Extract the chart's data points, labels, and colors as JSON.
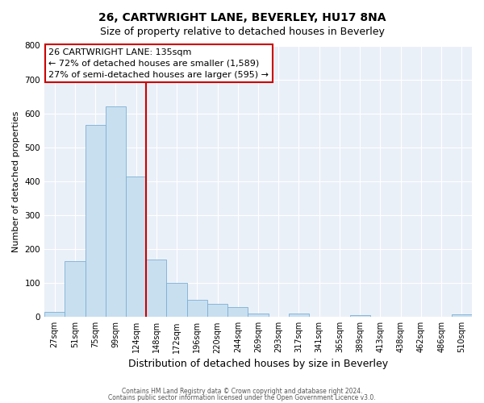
{
  "title": "26, CARTWRIGHT LANE, BEVERLEY, HU17 8NA",
  "subtitle": "Size of property relative to detached houses in Beverley",
  "xlabel": "Distribution of detached houses by size in Beverley",
  "ylabel": "Number of detached properties",
  "bin_labels": [
    "27sqm",
    "51sqm",
    "75sqm",
    "99sqm",
    "124sqm",
    "148sqm",
    "172sqm",
    "196sqm",
    "220sqm",
    "244sqm",
    "269sqm",
    "293sqm",
    "317sqm",
    "341sqm",
    "365sqm",
    "389sqm",
    "413sqm",
    "438sqm",
    "462sqm",
    "486sqm",
    "510sqm"
  ],
  "bar_heights": [
    15,
    165,
    565,
    620,
    415,
    170,
    100,
    50,
    38,
    30,
    10,
    0,
    10,
    0,
    0,
    5,
    0,
    0,
    0,
    0,
    8
  ],
  "bar_color": "#c8dff0",
  "bar_edge_color": "#7bafd4",
  "vline_x_index": 4.5,
  "vline_color": "#cc0000",
  "ylim": [
    0,
    800
  ],
  "yticks": [
    0,
    100,
    200,
    300,
    400,
    500,
    600,
    700,
    800
  ],
  "annotation_title": "26 CARTWRIGHT LANE: 135sqm",
  "annotation_line1": "← 72% of detached houses are smaller (1,589)",
  "annotation_line2": "27% of semi-detached houses are larger (595) →",
  "footnote1": "Contains HM Land Registry data © Crown copyright and database right 2024.",
  "footnote2": "Contains public sector information licensed under the Open Government Licence v3.0.",
  "bg_color": "#eaf0f8",
  "grid_color": "#ffffff",
  "title_fontsize": 10,
  "subtitle_fontsize": 9,
  "xlabel_fontsize": 9,
  "ylabel_fontsize": 8,
  "tick_fontsize": 7,
  "ann_fontsize": 8
}
